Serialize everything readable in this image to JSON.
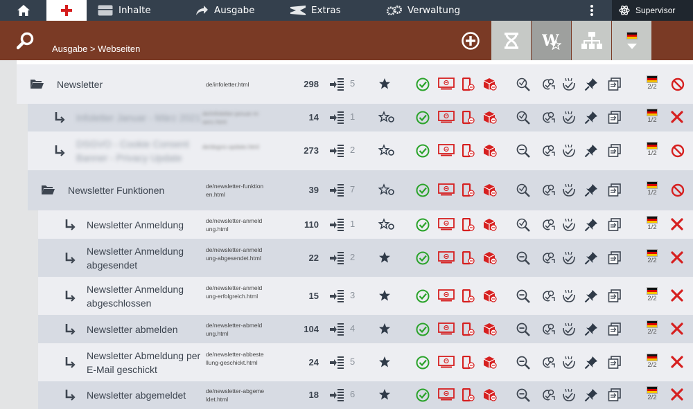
{
  "topbar": {
    "home_icon": "home-icon",
    "active_icon": "red-cross-icon",
    "items": [
      {
        "label": "Inhalte",
        "icon": "window-icon"
      },
      {
        "label": "Ausgabe",
        "icon": "arrow-icon"
      },
      {
        "label": "Extras",
        "icon": "hourglass-icon"
      },
      {
        "label": "Verwaltung",
        "icon": "gears-icon"
      }
    ],
    "user": "Supervisor",
    "user_icon": "atom-icon"
  },
  "header": {
    "breadcrumb": "Ausgabe > Webseiten",
    "tools": [
      "add-icon",
      "hourglass-tool-icon",
      "w-star-icon",
      "tree-icon",
      "language-flag-icon"
    ]
  },
  "colors": {
    "topbar": "#34404d",
    "header": "#7a3a25",
    "green": "#2aa32a",
    "red": "#d62020"
  },
  "rows": [
    {
      "title": "Newsletter",
      "url": "de/infoletter.html",
      "count": "298",
      "order": "5",
      "version": "2/2",
      "type": "folder",
      "indent": 0,
      "blurred": false,
      "star": "filled",
      "status": "stop"
    },
    {
      "title": "Infoletter Januar - März 2021",
      "url": "de/infoletter-januar-maerz.html",
      "count": "14",
      "order": "1",
      "version": "1/2",
      "type": "page",
      "indent": 1,
      "blurred": true,
      "star": "outline",
      "status": "x"
    },
    {
      "title": "DSGVO - Cookie Consent Banner - Privacy Update",
      "url": "de/dsgvo-update.html",
      "count": "273",
      "order": "2",
      "version": "1/2",
      "type": "page",
      "indent": 1,
      "blurred": true,
      "star": "outline",
      "status": "stop"
    },
    {
      "title": "Newsletter Funktionen",
      "url": "de/newsletter-funktionen.html",
      "count": "39",
      "order": "7",
      "version": "1/2",
      "type": "folder",
      "indent": 1,
      "blurred": false,
      "star": "outline",
      "status": "stop"
    },
    {
      "title": "Newsletter Anmeldung",
      "url": "de/newsletter-anmeldung.html",
      "count": "110",
      "order": "1",
      "version": "1/2",
      "type": "page",
      "indent": 2,
      "blurred": false,
      "star": "outline",
      "status": "x"
    },
    {
      "title": "Newsletter Anmeldung abgesendet",
      "url": "de/newsletter-anmeldung-abgesendet.html",
      "count": "22",
      "order": "2",
      "version": "2/2",
      "type": "page",
      "indent": 2,
      "blurred": false,
      "star": "filled",
      "status": "x"
    },
    {
      "title": "Newsletter Anmeldung abgeschlossen",
      "url": "de/newsletter-anmeldung-erfolgreich.html",
      "count": "15",
      "order": "3",
      "version": "2/2",
      "type": "page",
      "indent": 2,
      "blurred": false,
      "star": "filled",
      "status": "x"
    },
    {
      "title": "Newsletter abmelden",
      "url": "de/newsletter-abmeldung.html",
      "count": "104",
      "order": "4",
      "version": "2/2",
      "type": "page",
      "indent": 2,
      "blurred": false,
      "star": "filled",
      "status": "x"
    },
    {
      "title": "Newsletter Abmeldung per E-Mail geschickt",
      "url": "de/newsletter-abbestellung-geschickt.html",
      "count": "24",
      "order": "5",
      "version": "2/2",
      "type": "page",
      "indent": 2,
      "blurred": false,
      "star": "filled",
      "status": "x"
    },
    {
      "title": "Newsletter abgemeldet",
      "url": "de/newsletter-abgemeldet.html",
      "count": "18",
      "order": "6",
      "version": "2/2",
      "type": "page",
      "indent": 2,
      "blurred": false,
      "star": "filled",
      "status": "x"
    }
  ],
  "row_icons": [
    "sort-icon",
    "favorite-icon",
    "online-check-icon",
    "preview-icon",
    "mobile-icon",
    "cache-icon",
    "inspect-icon",
    "duplicate-icon",
    "approve-icon",
    "pin-icon",
    "copy-icon",
    "language-flag-icon",
    "delete-icon"
  ]
}
